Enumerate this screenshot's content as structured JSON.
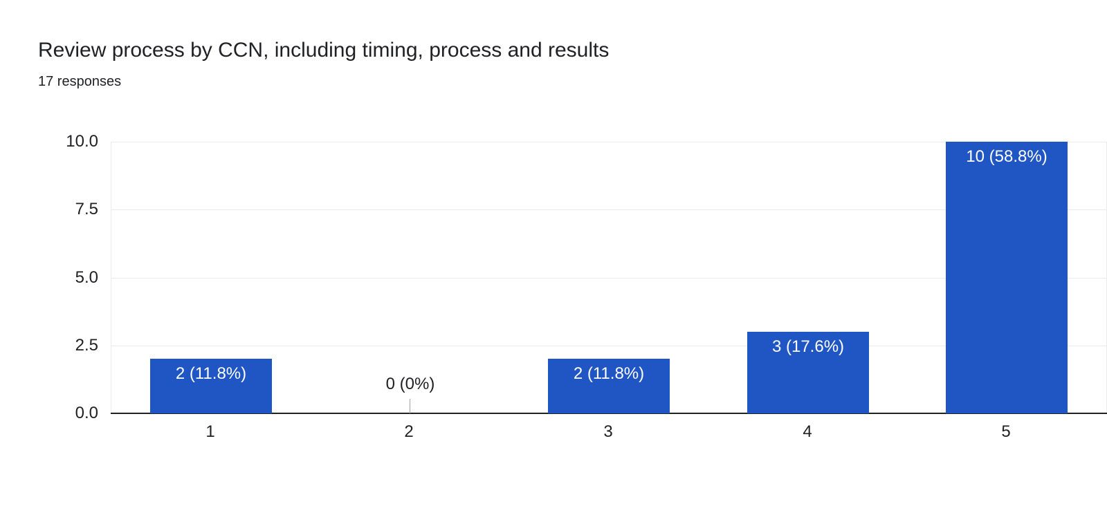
{
  "header": {
    "title": "Review process by CCN, including timing, process and results",
    "responses": "17 responses"
  },
  "chart_data": {
    "type": "bar",
    "title": "Review process by CCN, including timing, process and results",
    "subtitle": "17 responses",
    "categories": [
      "1",
      "2",
      "3",
      "4",
      "5"
    ],
    "values": [
      2,
      0,
      2,
      3,
      10
    ],
    "bar_labels": [
      "2 (11.8%)",
      "0 (0%)",
      "2 (11.8%)",
      "3 (17.6%)",
      "10 (58.8%)"
    ],
    "percentages": [
      11.8,
      0,
      11.8,
      17.6,
      58.8
    ],
    "total_responses": 17,
    "xlabel": "",
    "ylabel": "",
    "ylim": [
      0,
      10
    ],
    "yticks": [
      0,
      2.5,
      5,
      7.5,
      10
    ],
    "ytick_labels": [
      "0.0",
      "2.5",
      "5.0",
      "7.5",
      "10.0"
    ],
    "grid": true,
    "legend_position": "none",
    "colors": {
      "bar": "#2056c4",
      "bar_label_text": "#ffffff",
      "axis_line": "#212121",
      "grid_line": "#ebebeb",
      "text": "#202124",
      "zero_stem": "#9aa0a6",
      "background": "#ffffff"
    }
  }
}
